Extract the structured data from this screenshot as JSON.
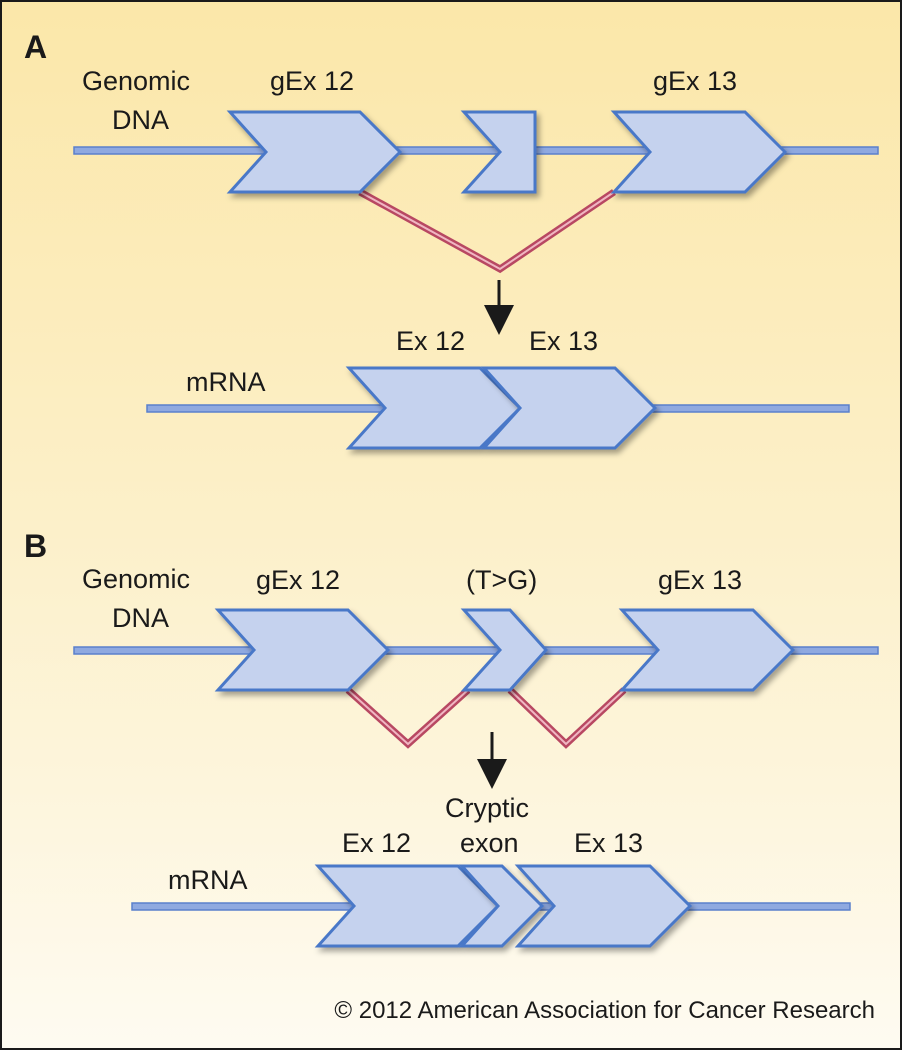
{
  "panel_a": {
    "letter": "A",
    "genomic_label_line1": "Genomic",
    "genomic_label_line2": "DNA",
    "gex12": "gEx 12",
    "gex13": "gEx 13",
    "mrna_label": "mRNA",
    "ex12": "Ex 12",
    "ex13": "Ex 13"
  },
  "panel_b": {
    "letter": "B",
    "genomic_label_line1": "Genomic",
    "genomic_label_line2": "DNA",
    "gex12": "gEx 12",
    "mutation": "(T>G)",
    "gex13": "gEx 13",
    "mrna_label": "mRNA",
    "ex12": "Ex 12",
    "cryptic_line1": "Cryptic",
    "cryptic_line2": "exon",
    "ex13": "Ex 13"
  },
  "copyright": "© 2012 American Association for Cancer Research",
  "colors": {
    "exon_fill": "#c5d2ee",
    "exon_stroke": "#4a78c8",
    "strand": "#6b8fd6",
    "splice": "#c0506a"
  }
}
